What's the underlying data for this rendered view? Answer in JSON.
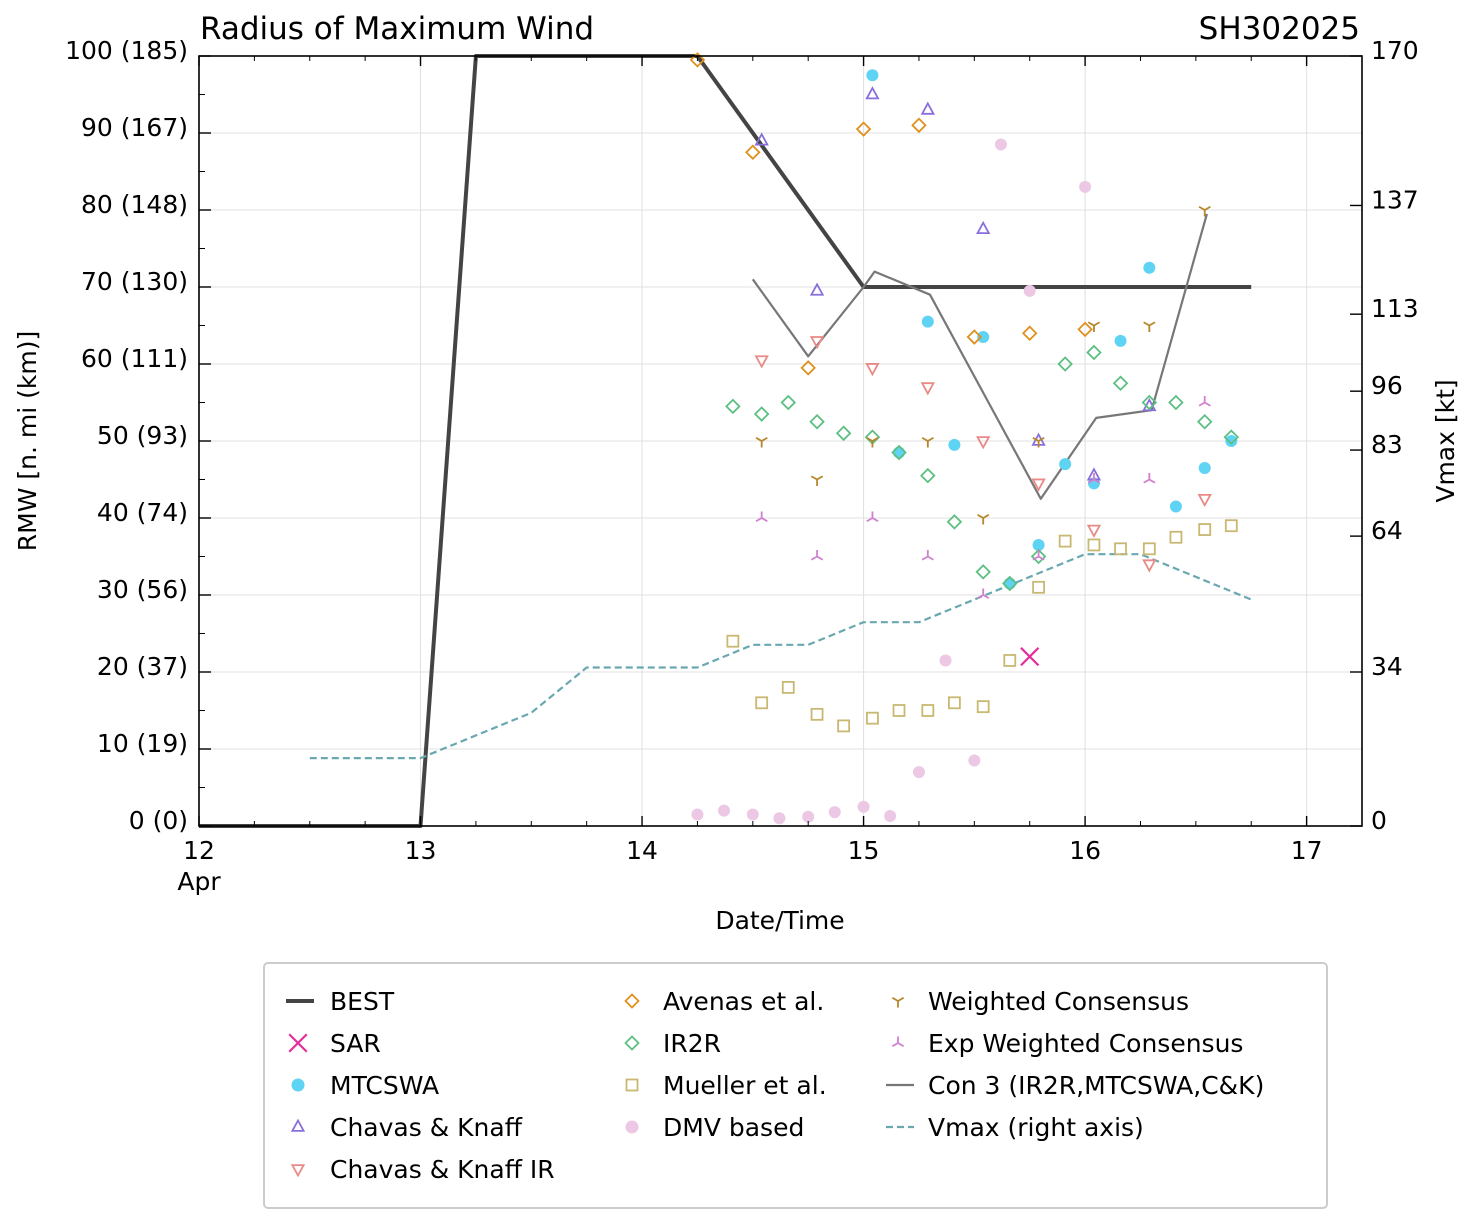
{
  "chart_data": {
    "type": "scatter",
    "title": "Radius of Maximum Wind",
    "storm_id": "SH302025",
    "xlabel": "Date/Time",
    "ylabel": "RMW [n. mi (km)]",
    "y2label": "Vmax [kt]",
    "xlim": [
      12,
      17.25
    ],
    "ylim": [
      0,
      100
    ],
    "y2lim": [
      0,
      170
    ],
    "grid": true,
    "x_ticks": [
      {
        "value": 12,
        "label": "12",
        "sublabel": "Apr"
      },
      {
        "value": 13,
        "label": "13"
      },
      {
        "value": 14,
        "label": "14"
      },
      {
        "value": 15,
        "label": "15"
      },
      {
        "value": 16,
        "label": "16"
      },
      {
        "value": 17,
        "label": "17"
      }
    ],
    "y_ticks": [
      {
        "value": 0,
        "label": "0 (0)"
      },
      {
        "value": 10,
        "label": "10 (19)"
      },
      {
        "value": 20,
        "label": "20 (37)"
      },
      {
        "value": 30,
        "label": "30 (56)"
      },
      {
        "value": 40,
        "label": "40 (74)"
      },
      {
        "value": 50,
        "label": "50 (93)"
      },
      {
        "value": 60,
        "label": "60 (111)"
      },
      {
        "value": 70,
        "label": "70 (130)"
      },
      {
        "value": 80,
        "label": "80 (148)"
      },
      {
        "value": 90,
        "label": "90 (167)"
      },
      {
        "value": 100,
        "label": "100 (185)"
      }
    ],
    "y2_ticks": [
      {
        "value": 0,
        "label": "0"
      },
      {
        "value": 34,
        "label": "34"
      },
      {
        "value": 64,
        "label": "64"
      },
      {
        "value": 83,
        "label": "83"
      },
      {
        "value": 96,
        "label": "96"
      },
      {
        "value": 113,
        "label": "113"
      },
      {
        "value": 137,
        "label": "137"
      },
      {
        "value": 170,
        "label": "170"
      }
    ],
    "series": [
      {
        "name": "BEST",
        "kind": "line",
        "color": "#444444",
        "x": [
          12.0,
          13.0,
          13.25,
          14.25,
          15.0,
          16.75
        ],
        "y": [
          0,
          0,
          100,
          100,
          70,
          70
        ]
      },
      {
        "name": "Con 3 (IR2R,MTCSWA,C&K)",
        "kind": "line",
        "color": "#777777",
        "x": [
          14.5,
          14.75,
          15.0,
          15.05,
          15.3,
          15.8,
          16.05,
          16.3,
          16.55
        ],
        "y": [
          71,
          61,
          70,
          72,
          69,
          42.5,
          53,
          54,
          79.5
        ]
      },
      {
        "name": "Vmax (right axis)",
        "kind": "dashed",
        "axis": "right",
        "color": "#6aa8b0",
        "x": [
          12.5,
          13.0,
          13.5,
          13.75,
          14.25,
          14.5,
          14.75,
          15.0,
          15.25,
          15.75,
          16.0,
          16.25,
          16.75
        ],
        "y": [
          15,
          15,
          25,
          35,
          35,
          40,
          40,
          45,
          45,
          55,
          60,
          60,
          50
        ]
      },
      {
        "name": "SAR",
        "kind": "marker",
        "marker": "x",
        "color": "#e62e9a",
        "x": [
          15.75
        ],
        "y": [
          22
        ]
      },
      {
        "name": "MTCSWA",
        "kind": "marker",
        "marker": "circle",
        "color": "#5fd3f3",
        "x": [
          15.04,
          15.16,
          15.29,
          15.41,
          15.54,
          15.66,
          15.79,
          15.91,
          16.04,
          16.16,
          16.29,
          16.41,
          16.54,
          16.66
        ],
        "y": [
          97.5,
          48.5,
          65.5,
          49.5,
          63.5,
          31.5,
          36.5,
          47,
          44.5,
          63,
          72.5,
          41.5,
          46.5,
          50
        ]
      },
      {
        "name": "Chavas & Knaff",
        "kind": "marker",
        "marker": "triangle-up",
        "color": "#8a6fdb",
        "x": [
          14.54,
          14.79,
          15.04,
          15.29,
          15.54,
          15.79,
          16.04,
          16.29
        ],
        "y": [
          89,
          69.5,
          95,
          93,
          77.5,
          50,
          45.5,
          54.5
        ]
      },
      {
        "name": "Chavas & Knaff IR",
        "kind": "marker",
        "marker": "triangle-down",
        "color": "#e88a86",
        "x": [
          14.54,
          14.79,
          15.04,
          15.29,
          15.54,
          15.79,
          16.04,
          16.29,
          16.54
        ],
        "y": [
          60.5,
          63,
          59.5,
          57,
          50,
          44.5,
          38.5,
          34,
          42.5
        ]
      },
      {
        "name": "Avenas et al.",
        "kind": "marker",
        "marker": "diamond",
        "color": "#e0901d",
        "x": [
          14.25,
          14.5,
          14.75,
          15.0,
          15.25,
          15.5,
          15.75,
          16.0
        ],
        "y": [
          99.5,
          87.5,
          59.5,
          90.5,
          91,
          63.5,
          64,
          64.5
        ]
      },
      {
        "name": "IR2R",
        "kind": "marker",
        "marker": "diamond",
        "color": "#5cbf82",
        "x": [
          14.41,
          14.54,
          14.66,
          14.79,
          14.91,
          15.04,
          15.16,
          15.29,
          15.41,
          15.54,
          15.66,
          15.79,
          15.91,
          16.04,
          16.16,
          16.29,
          16.41,
          16.54,
          16.66
        ],
        "y": [
          54.5,
          53.5,
          55,
          52.5,
          51,
          50.5,
          48.5,
          45.5,
          39.5,
          33,
          31.5,
          35,
          60,
          61.5,
          57.5,
          55,
          55,
          52.5,
          50.5
        ]
      },
      {
        "name": "Mueller et al.",
        "kind": "marker",
        "marker": "square",
        "color": "#c8b872",
        "x": [
          14.41,
          14.54,
          14.66,
          14.79,
          14.91,
          15.04,
          15.16,
          15.29,
          15.41,
          15.54,
          15.66,
          15.79,
          15.91,
          16.04,
          16.16,
          16.29,
          16.41,
          16.54,
          16.66
        ],
        "y": [
          24,
          16,
          18,
          14.5,
          13,
          14,
          15,
          15,
          16,
          15.5,
          21.5,
          31,
          37,
          36.5,
          36,
          36,
          37.5,
          38.5,
          39
        ]
      },
      {
        "name": "DMV based",
        "kind": "marker",
        "marker": "circle",
        "color": "#ecc8e4",
        "x": [
          14.25,
          14.37,
          14.5,
          14.62,
          14.75,
          14.87,
          15.0,
          15.12,
          15.25,
          15.37,
          15.5,
          15.62,
          15.75,
          16.0
        ],
        "y": [
          1.5,
          2,
          1.5,
          1,
          1.2,
          1.8,
          2.5,
          1.3,
          7,
          21.5,
          8.5,
          88.5,
          69.5,
          83
        ]
      },
      {
        "name": "Weighted Consensus",
        "kind": "marker",
        "marker": "tri-down",
        "color": "#b8862a",
        "x": [
          14.54,
          14.79,
          15.04,
          15.29,
          15.54,
          15.79,
          16.04,
          16.29,
          16.54
        ],
        "y": [
          50,
          45,
          50,
          50,
          40,
          50,
          65,
          65,
          80
        ]
      },
      {
        "name": "Exp Weighted Consensus",
        "kind": "marker",
        "marker": "tri-up",
        "color": "#d27fd0",
        "x": [
          14.54,
          14.79,
          15.04,
          15.29,
          15.54,
          15.79,
          16.04,
          16.29,
          16.54
        ],
        "y": [
          40,
          35,
          40,
          35,
          30,
          35,
          45,
          45,
          55
        ]
      }
    ],
    "legend": {
      "placement": "bottom",
      "entries": [
        {
          "label": "BEST",
          "symbol": "line",
          "color": "#444444"
        },
        {
          "label": "SAR",
          "symbol": "x",
          "color": "#e62e9a"
        },
        {
          "label": "MTCSWA",
          "symbol": "circle",
          "color": "#5fd3f3"
        },
        {
          "label": "Chavas & Knaff",
          "symbol": "triangle-up",
          "color": "#8a6fdb"
        },
        {
          "label": "Chavas & Knaff IR",
          "symbol": "triangle-down",
          "color": "#e88a86"
        },
        {
          "label": "Avenas et al.",
          "symbol": "diamond",
          "color": "#e0901d"
        },
        {
          "label": "IR2R",
          "symbol": "diamond",
          "color": "#5cbf82"
        },
        {
          "label": "Mueller et al.",
          "symbol": "square",
          "color": "#c8b872"
        },
        {
          "label": "DMV based",
          "symbol": "circle",
          "color": "#ecc8e4"
        },
        {
          "label": "Weighted Consensus",
          "symbol": "tri-down",
          "color": "#b8862a"
        },
        {
          "label": "Exp Weighted Consensus",
          "symbol": "tri-up",
          "color": "#d27fd0"
        },
        {
          "label": "Con 3 (IR2R,MTCSWA,C&K)",
          "symbol": "thinline",
          "color": "#777777"
        },
        {
          "label": "Vmax (right axis)",
          "symbol": "dashed",
          "color": "#6aa8b0"
        }
      ]
    }
  }
}
